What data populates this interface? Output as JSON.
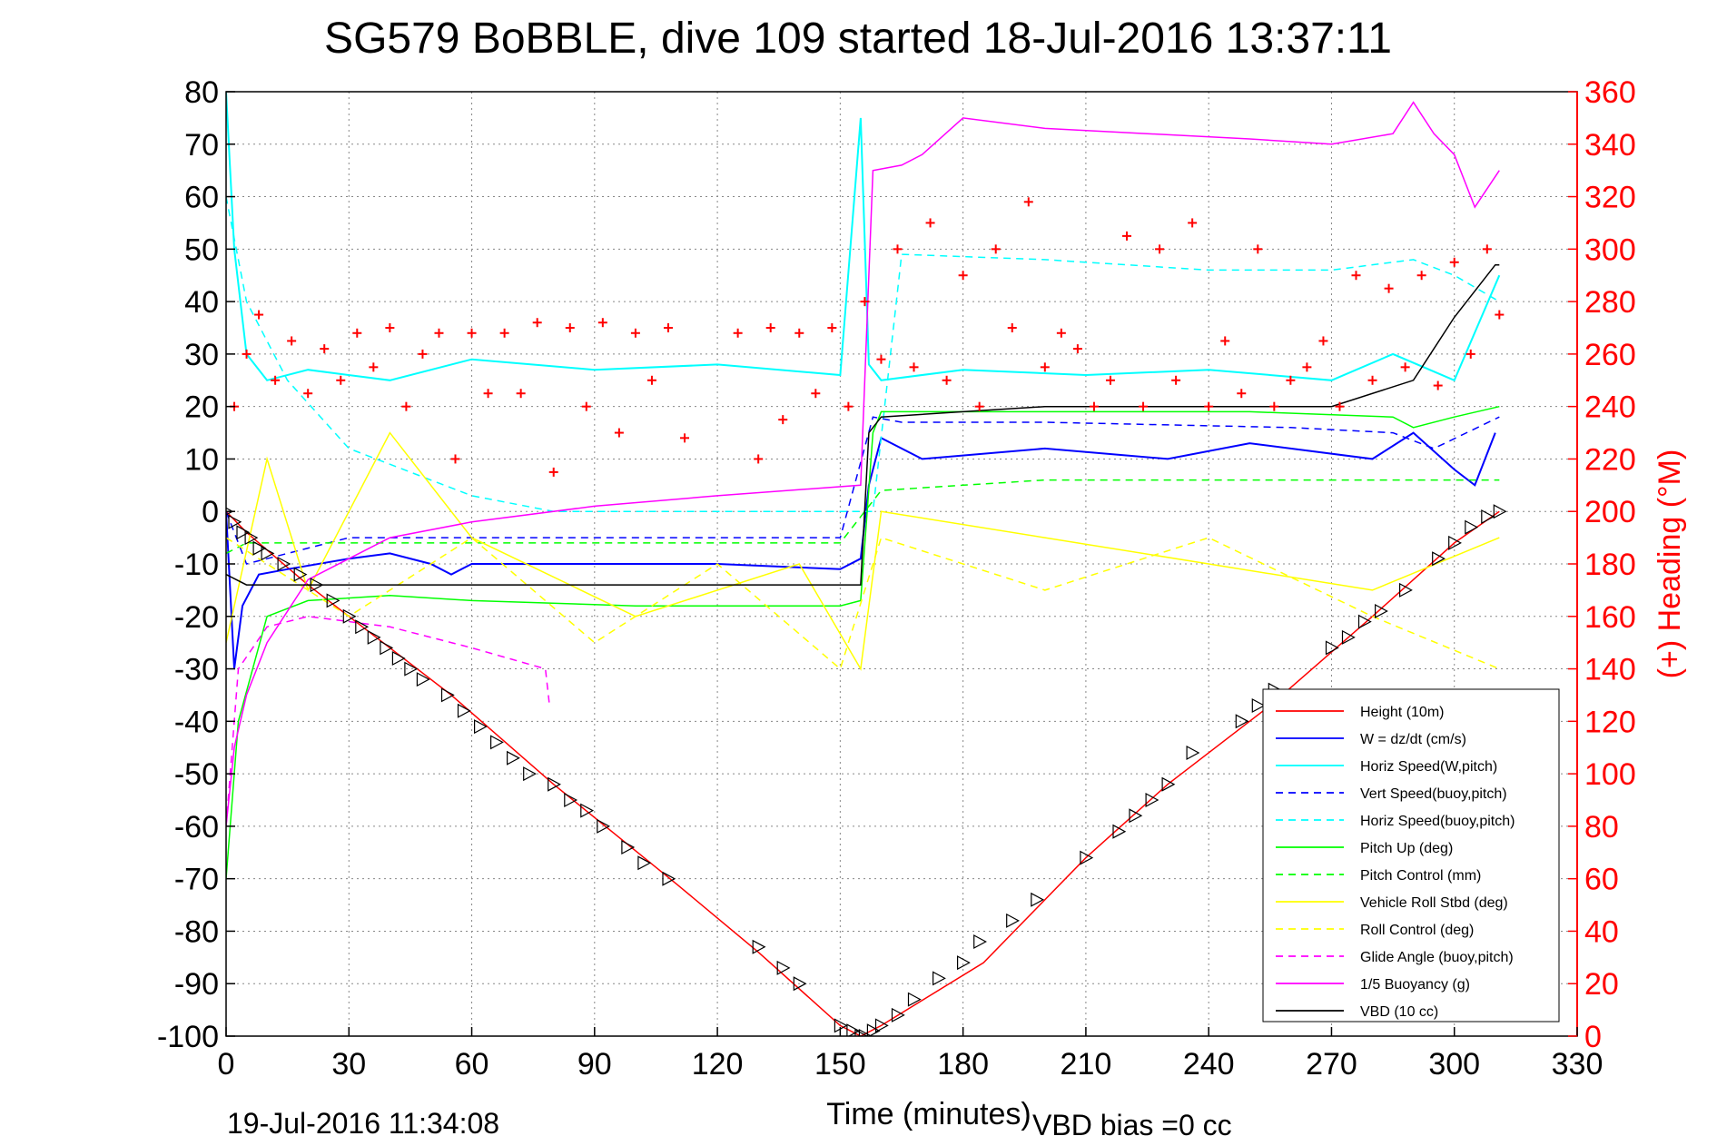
{
  "chart_data": {
    "type": "line",
    "title": "SG579 BoBBLE, dive 109 started 18-Jul-2016 13:37:11",
    "xlabel": "Time (minutes)",
    "ylabel": "",
    "y2label": "(+) Heading (°M)",
    "footer_left": "19-Jul-2016 11:34:08",
    "footer_right": "VBD bias =0 cc",
    "xlim": [
      0,
      330
    ],
    "ylim": [
      -100,
      80
    ],
    "y2lim": [
      0,
      360
    ],
    "x_ticks": [
      0,
      30,
      60,
      90,
      120,
      150,
      180,
      210,
      240,
      270,
      300,
      330
    ],
    "y_ticks": [
      -100,
      -90,
      -80,
      -70,
      -60,
      -50,
      -40,
      -30,
      -20,
      -10,
      0,
      10,
      20,
      30,
      40,
      50,
      60,
      70,
      80
    ],
    "y2_ticks": [
      0,
      20,
      40,
      60,
      80,
      100,
      120,
      140,
      160,
      180,
      200,
      220,
      240,
      260,
      280,
      300,
      320,
      340,
      360
    ],
    "grid": true,
    "legend_position": "bottom-right",
    "colors": {
      "height": "#ff0000",
      "w": "#0000ff",
      "horiz_w": "#00ffff",
      "vert_buoy": "#0000ff",
      "horiz_buoy": "#00ffff",
      "pitch": "#00ff00",
      "pitch_ctl": "#00ff00",
      "roll": "#ffff00",
      "roll_ctl": "#ffff00",
      "glide": "#ff00ff",
      "buoy": "#ff00ff",
      "vbd": "#000000",
      "heading": "#ff0000",
      "axis_right": "#ff0000"
    },
    "series": [
      {
        "id": "height",
        "name": "Height (10m)",
        "style": "solid",
        "color": "#ff0000",
        "x": [
          0,
          5,
          20,
          30,
          55,
          80,
          110,
          130,
          150,
          155,
          160,
          185,
          210,
          230,
          255,
          280,
          300,
          311
        ],
        "y": [
          0,
          -4,
          -14,
          -20,
          -35,
          -52,
          -71,
          -84,
          -98,
          -100,
          -98,
          -86,
          -66,
          -52,
          -37,
          -20,
          -6,
          0
        ]
      },
      {
        "id": "w",
        "name": "W = dz/dt (cm/s)",
        "style": "solid",
        "color": "#0000ff",
        "x": [
          0,
          2,
          4,
          8,
          15,
          30,
          40,
          50,
          55,
          60,
          90,
          120,
          150,
          155,
          157,
          160,
          170,
          200,
          230,
          250,
          280,
          290,
          300,
          305,
          310
        ],
        "y": [
          0,
          -30,
          -18,
          -12,
          -11,
          -9,
          -8,
          -10,
          -12,
          -10,
          -10,
          -10,
          -11,
          -9,
          5,
          14,
          10,
          12,
          10,
          13,
          10,
          15,
          8,
          5,
          15
        ]
      },
      {
        "id": "horiz_w",
        "name": "Horiz Speed(W,pitch)",
        "style": "solid",
        "color": "#00ffff",
        "x": [
          0,
          2,
          5,
          10,
          20,
          40,
          60,
          90,
          120,
          150,
          155,
          157,
          160,
          180,
          210,
          240,
          270,
          285,
          300,
          311
        ],
        "y": [
          80,
          50,
          30,
          25,
          27,
          25,
          29,
          27,
          28,
          26,
          75,
          28,
          25,
          27,
          26,
          27,
          25,
          30,
          25,
          45
        ]
      },
      {
        "id": "vert_buoy",
        "name": "Vert Speed(buoy,pitch)",
        "style": "dashed",
        "color": "#0000ff",
        "x": [
          0,
          5,
          30,
          60,
          150,
          158,
          165,
          200,
          260,
          285,
          295,
          311
        ],
        "y": [
          0,
          -10,
          -5,
          -5,
          -5,
          18,
          17,
          17,
          16,
          15,
          12,
          18
        ]
      },
      {
        "id": "horiz_buoy",
        "name": "Horiz Speed(buoy,pitch)",
        "style": "dashed",
        "color": "#00ffff",
        "x": [
          0,
          5,
          15,
          30,
          60,
          80,
          158,
          165,
          200,
          240,
          270,
          290,
          300,
          311
        ],
        "y": [
          60,
          40,
          25,
          12,
          3,
          0,
          0,
          49,
          48,
          46,
          46,
          48,
          45,
          40
        ]
      },
      {
        "id": "pitch",
        "name": "Pitch Up (deg)",
        "style": "solid",
        "color": "#00ff00",
        "x": [
          0,
          3,
          10,
          20,
          40,
          60,
          100,
          150,
          155,
          158,
          160,
          200,
          250,
          285,
          290,
          300,
          311
        ],
        "y": [
          -70,
          -40,
          -20,
          -17,
          -16,
          -17,
          -18,
          -18,
          -17,
          15,
          19,
          19,
          19,
          18,
          16,
          18,
          20
        ]
      },
      {
        "id": "pitch_ctl",
        "name": "Pitch Control (mm)",
        "style": "dashed",
        "color": "#00ff00",
        "x": [
          0,
          5,
          30,
          60,
          150,
          156,
          160,
          180,
          200,
          270,
          290,
          311
        ],
        "y": [
          -8,
          -6,
          -6,
          -6,
          -6,
          0,
          4,
          5,
          6,
          6,
          6,
          6
        ]
      },
      {
        "id": "roll",
        "name": "Vehicle Roll Stbd (deg)",
        "style": "solid",
        "color": "#ffff00",
        "x": [
          0,
          10,
          20,
          40,
          60,
          100,
          140,
          155,
          160,
          200,
          240,
          280,
          311
        ],
        "y": [
          -25,
          10,
          -15,
          15,
          -5,
          -20,
          -10,
          -30,
          0,
          -5,
          -10,
          -15,
          -5
        ]
      },
      {
        "id": "roll_ctl",
        "name": "Roll Control (deg)",
        "style": "dashed",
        "color": "#ffff00",
        "x": [
          0,
          30,
          60,
          90,
          120,
          150,
          160,
          200,
          240,
          280,
          311
        ],
        "y": [
          -5,
          -20,
          -5,
          -25,
          -10,
          -30,
          -5,
          -15,
          -5,
          -20,
          -30
        ]
      },
      {
        "id": "glide",
        "name": "Glide Angle (buoy,pitch)",
        "style": "dashed",
        "color": "#ff00ff",
        "x": [
          0,
          3,
          10,
          20,
          40,
          60,
          78,
          79
        ],
        "y": [
          -60,
          -30,
          -22,
          -20,
          -22,
          -26,
          -30,
          -37
        ]
      },
      {
        "id": "buoy",
        "name": "1/5 Buoyancy (g)",
        "style": "solid",
        "color": "#ff00ff",
        "x": [
          0,
          2,
          5,
          10,
          20,
          40,
          60,
          90,
          120,
          155,
          158,
          165,
          170,
          180,
          200,
          250,
          270,
          285,
          290,
          295,
          300,
          305,
          311
        ],
        "y": [
          -60,
          -45,
          -35,
          -25,
          -13,
          -5,
          -2,
          1,
          3,
          5,
          65,
          66,
          68,
          75,
          73,
          71,
          70,
          72,
          78,
          72,
          68,
          58,
          65
        ]
      },
      {
        "id": "vbd",
        "name": "VBD (10 cc)",
        "style": "solid",
        "color": "#000000",
        "x": [
          0,
          5,
          20,
          60,
          155,
          157,
          160,
          180,
          200,
          250,
          270,
          290,
          300,
          310,
          311
        ],
        "y": [
          -12,
          -14,
          -14,
          -14,
          -14,
          15,
          18,
          19,
          20,
          20,
          20,
          25,
          37,
          47,
          47
        ]
      }
    ],
    "heading": {
      "name": "(+) Heading (°M)",
      "marker": "+",
      "color": "#ff0000",
      "x": [
        2,
        5,
        8,
        12,
        16,
        20,
        24,
        28,
        32,
        36,
        40,
        44,
        48,
        52,
        56,
        60,
        64,
        68,
        72,
        76,
        80,
        84,
        88,
        92,
        96,
        100,
        104,
        108,
        112,
        125,
        130,
        133,
        136,
        140,
        144,
        148,
        152,
        156,
        160,
        164,
        168,
        172,
        176,
        180,
        184,
        188,
        192,
        196,
        200,
        204,
        208,
        212,
        216,
        220,
        224,
        228,
        232,
        236,
        240,
        244,
        248,
        252,
        256,
        260,
        264,
        268,
        272,
        276,
        280,
        284,
        288,
        292,
        296,
        300,
        304,
        308,
        311
      ],
      "y": [
        240,
        260,
        275,
        250,
        265,
        245,
        262,
        250,
        268,
        255,
        270,
        240,
        260,
        268,
        220,
        268,
        245,
        268,
        245,
        272,
        215,
        270,
        240,
        272,
        230,
        268,
        250,
        270,
        228,
        268,
        220,
        270,
        235,
        268,
        245,
        270,
        240,
        280,
        258,
        300,
        255,
        310,
        250,
        290,
        240,
        300,
        270,
        318,
        255,
        268,
        262,
        240,
        250,
        305,
        240,
        300,
        250,
        310,
        240,
        265,
        245,
        300,
        240,
        250,
        255,
        265,
        240,
        290,
        250,
        285,
        255,
        290,
        248,
        295,
        260,
        300,
        275
      ]
    },
    "time_markers": {
      "name": "depth markers",
      "marker": "triangle",
      "x": [
        0,
        2,
        4,
        6,
        8,
        10,
        14,
        18,
        22,
        26,
        30,
        33,
        36,
        39,
        42,
        45,
        48,
        54,
        58,
        62,
        66,
        70,
        74,
        80,
        84,
        88,
        92,
        98,
        102,
        108,
        130,
        136,
        140,
        150,
        153,
        155,
        156,
        158,
        160,
        164,
        168,
        174,
        180,
        184,
        192,
        198,
        210,
        218,
        222,
        226,
        230,
        236,
        248,
        252,
        256,
        270,
        274,
        278,
        282,
        288,
        296,
        300,
        304,
        308,
        311
      ],
      "y": [
        0,
        -2,
        -4,
        -5,
        -7,
        -8,
        -10,
        -12,
        -14,
        -17,
        -20,
        -22,
        -24,
        -26,
        -28,
        -30,
        -32,
        -35,
        -38,
        -41,
        -44,
        -47,
        -50,
        -52,
        -55,
        -57,
        -60,
        -64,
        -67,
        -70,
        -83,
        -87,
        -90,
        -98,
        -99,
        -100,
        -100,
        -99,
        -98,
        -96,
        -93,
        -89,
        -86,
        -82,
        -78,
        -74,
        -66,
        -61,
        -58,
        -55,
        -52,
        -46,
        -40,
        -37,
        -34,
        -26,
        -24,
        -21,
        -19,
        -15,
        -9,
        -6,
        -3,
        -1,
        0
      ]
    }
  }
}
